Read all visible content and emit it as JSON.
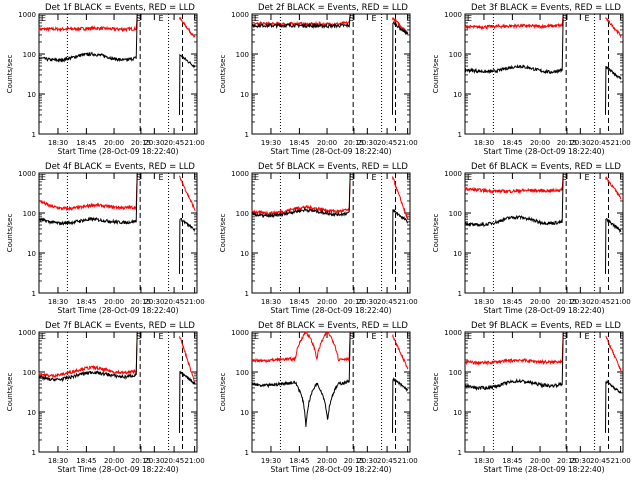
{
  "colors": {
    "black_series": "#000000",
    "red_series": "#ff0000"
  },
  "chart_data": [
    {
      "type": "line",
      "title": "Det 1f BLACK = Events, RED = LLD",
      "xlabel": "Start Time (28-Oct-09 18:22:40)",
      "ylabel": "Counts/sec",
      "yscale": "log",
      "ylim": [
        1,
        1000
      ],
      "x_range": [
        "18:22:40",
        "21:00"
      ],
      "x_ticks": [
        "18:30",
        "18:45",
        "20:00",
        "20:15",
        "20:30",
        "20:45",
        "21:00"
      ],
      "y_ticks": [
        "1",
        "10",
        "100",
        "1000"
      ],
      "markers": {
        "E_left": "E",
        "S": "S",
        "E_right": "E"
      },
      "series": [
        {
          "x": [
            "18:23",
            "18:30",
            "18:45",
            "19:00",
            "19:15",
            "19:30",
            "19:45",
            "20:00",
            "20:10",
            "20:14"
          ],
          "values": [
            420,
            420,
            420,
            425,
            430,
            440,
            435,
            420,
            415,
            430
          ]
        },
        {
          "x": [
            "18:23",
            "18:30",
            "18:45",
            "19:00",
            "19:15",
            "19:30",
            "19:45",
            "20:00",
            "20:10",
            "20:14"
          ],
          "values": [
            80,
            72,
            70,
            80,
            95,
            100,
            90,
            75,
            70,
            80
          ]
        }
      ]
    },
    {
      "type": "line",
      "title": "Det 2f BLACK = Events, RED = LLD",
      "xlabel": "Start Time (28-Oct-09 18:22:40)",
      "ylabel": "Counts/sec",
      "yscale": "log",
      "ylim": [
        1,
        1000
      ],
      "x_range": [
        "18:22:40",
        "21:00"
      ],
      "x_ticks": [
        "19:30",
        "18:45",
        "20:00",
        "20:15",
        "20:30",
        "20:45",
        "21:00"
      ],
      "y_ticks": [
        "1",
        "10",
        "100",
        "1000"
      ],
      "markers": {
        "E_left": "E",
        "S": "S",
        "E_right": "E"
      },
      "series": [
        {
          "x": [
            "18:23",
            "18:30",
            "18:45",
            "19:00",
            "19:15",
            "19:30",
            "19:45",
            "20:00",
            "20:10",
            "20:14"
          ],
          "values": [
            560,
            570,
            560,
            565,
            570,
            560,
            560,
            555,
            560,
            600
          ]
        },
        {
          "x": [
            "18:23",
            "18:30",
            "18:45",
            "19:00",
            "19:15",
            "19:30",
            "19:45",
            "20:00",
            "20:10",
            "20:14"
          ],
          "values": [
            500,
            520,
            510,
            515,
            520,
            510,
            505,
            500,
            505,
            520
          ]
        }
      ]
    },
    {
      "type": "line",
      "title": "Det 3f BLACK = Events, RED = LLD",
      "xlabel": "Start Time (28-Oct-09 18:22:40)",
      "ylabel": "Counts/sec",
      "yscale": "log",
      "ylim": [
        1,
        1000
      ],
      "x_range": [
        "18:22:40",
        "21:00"
      ],
      "x_ticks": [
        "18:30",
        "18:45",
        "20:00",
        "20:15",
        "20:30",
        "20:45",
        "21:00"
      ],
      "y_ticks": [
        "1",
        "10",
        "100",
        "1000"
      ],
      "markers": {
        "E_left": "E",
        "S": "S",
        "E_right": "E"
      },
      "series": [
        {
          "x": [
            "18:23",
            "18:30",
            "18:45",
            "19:00",
            "19:15",
            "19:30",
            "19:45",
            "20:00",
            "20:10",
            "20:14"
          ],
          "values": [
            480,
            470,
            480,
            490,
            500,
            510,
            500,
            490,
            500,
            520
          ]
        },
        {
          "x": [
            "18:23",
            "18:30",
            "18:45",
            "19:00",
            "19:15",
            "19:30",
            "19:45",
            "20:00",
            "20:10",
            "20:14"
          ],
          "values": [
            40,
            38,
            36,
            38,
            45,
            50,
            45,
            38,
            35,
            40
          ]
        }
      ]
    },
    {
      "type": "line",
      "title": "Det 4f BLACK = Events, RED = LLD",
      "xlabel": "Start Time (28-Oct-09 18:22:40)",
      "ylabel": "Counts/sec",
      "yscale": "log",
      "ylim": [
        1,
        1000
      ],
      "x_range": [
        "18:22:40",
        "21:00"
      ],
      "x_ticks": [
        "18:30",
        "18:45",
        "20:00",
        "20:15",
        "20:30",
        "20:45",
        "21:00"
      ],
      "y_ticks": [
        "1",
        "10",
        "100",
        "1000"
      ],
      "markers": {
        "E_left": "E",
        "S": "S",
        "E_right": "E"
      },
      "series": [
        {
          "x": [
            "18:23",
            "18:30",
            "18:45",
            "19:00",
            "19:15",
            "19:30",
            "19:45",
            "20:00",
            "20:10",
            "20:14"
          ],
          "values": [
            200,
            150,
            130,
            130,
            140,
            160,
            150,
            140,
            135,
            140
          ]
        },
        {
          "x": [
            "18:23",
            "18:30",
            "18:45",
            "19:00",
            "19:15",
            "19:30",
            "19:45",
            "20:00",
            "20:10",
            "20:14"
          ],
          "values": [
            70,
            60,
            55,
            58,
            65,
            70,
            65,
            60,
            58,
            62
          ]
        }
      ]
    },
    {
      "type": "line",
      "title": "Det 5f BLACK = Events, RED = LLD",
      "xlabel": "Start Time (28-Oct-09 18:22:40)",
      "ylabel": "Counts/sec",
      "yscale": "log",
      "ylim": [
        1,
        1000
      ],
      "x_range": [
        "18:22:40",
        "21:00"
      ],
      "x_ticks": [
        "18:30",
        "18:45",
        "20:00",
        "20:15",
        "20:30",
        "20:45",
        "21:00"
      ],
      "y_ticks": [
        "1",
        "10",
        "100",
        "1000"
      ],
      "markers": {
        "E_left": "E",
        "S": "S",
        "E_right": "E"
      },
      "series": [
        {
          "x": [
            "18:23",
            "18:30",
            "18:45",
            "19:00",
            "19:15",
            "19:30",
            "19:45",
            "20:00",
            "20:10",
            "20:14"
          ],
          "values": [
            110,
            100,
            100,
            110,
            130,
            140,
            130,
            115,
            110,
            120
          ]
        },
        {
          "x": [
            "18:23",
            "18:30",
            "18:45",
            "19:00",
            "19:15",
            "19:30",
            "19:45",
            "20:00",
            "20:10",
            "20:14"
          ],
          "values": [
            95,
            85,
            85,
            95,
            110,
            120,
            110,
            98,
            92,
            100
          ]
        }
      ]
    },
    {
      "type": "line",
      "title": "Det 6f BLACK = Events, RED = LLD",
      "xlabel": "Start Time (28-Oct-09 18:22:40)",
      "ylabel": "Counts/sec",
      "yscale": "log",
      "ylim": [
        1,
        1000
      ],
      "x_range": [
        "18:22:40",
        "21:00"
      ],
      "x_ticks": [
        "18:30",
        "18:45",
        "20:00",
        "20:15",
        "20:30",
        "20:45",
        "21:00"
      ],
      "y_ticks": [
        "1",
        "10",
        "100",
        "1000"
      ],
      "markers": {
        "E_left": "E",
        "S": "S",
        "E_right": "E"
      },
      "series": [
        {
          "x": [
            "18:23",
            "18:30",
            "18:45",
            "19:00",
            "19:15",
            "19:30",
            "19:45",
            "20:00",
            "20:10",
            "20:14"
          ],
          "values": [
            400,
            380,
            360,
            350,
            350,
            360,
            370,
            360,
            360,
            380
          ]
        },
        {
          "x": [
            "18:23",
            "18:30",
            "18:45",
            "19:00",
            "19:15",
            "19:30",
            "19:45",
            "20:00",
            "20:10",
            "20:14"
          ],
          "values": [
            55,
            50,
            52,
            60,
            75,
            80,
            70,
            58,
            55,
            60
          ]
        }
      ]
    },
    {
      "type": "line",
      "title": "Det 7f BLACK = Events, RED = LLD",
      "xlabel": "Start Time (28-Oct-09 18:22:40)",
      "ylabel": "Counts/sec",
      "yscale": "log",
      "ylim": [
        1,
        1000
      ],
      "x_range": [
        "18:22:40",
        "21:00"
      ],
      "x_ticks": [
        "18:30",
        "18:45",
        "20:00",
        "20:15",
        "20:30",
        "20:45",
        "21:00"
      ],
      "y_ticks": [
        "1",
        "10",
        "100",
        "1000"
      ],
      "markers": {
        "E_left": "E",
        "S": "S",
        "E_right": "E"
      },
      "series": [
        {
          "x": [
            "18:23",
            "18:30",
            "18:45",
            "19:00",
            "19:15",
            "19:30",
            "19:45",
            "20:00",
            "20:10",
            "20:14"
          ],
          "values": [
            90,
            80,
            85,
            100,
            120,
            130,
            115,
            100,
            95,
            105
          ]
        },
        {
          "x": [
            "18:23",
            "18:30",
            "18:45",
            "19:00",
            "19:15",
            "19:30",
            "19:45",
            "20:00",
            "20:10",
            "20:14"
          ],
          "values": [
            75,
            65,
            65,
            75,
            90,
            100,
            90,
            80,
            75,
            85
          ]
        }
      ]
    },
    {
      "type": "line",
      "title": "Det 8f BLACK = Events, RED = LLD",
      "xlabel": "Start Time (28-Oct-09 18:22:40)",
      "ylabel": "Counts/sec",
      "yscale": "log",
      "ylim": [
        1,
        1000
      ],
      "x_range": [
        "18:22:40",
        "21:00"
      ],
      "x_ticks": [
        "19:30",
        "18:45",
        "20:00",
        "20:15",
        "20:30",
        "20:45",
        "21:00"
      ],
      "y_ticks": [
        "1",
        "10",
        "100",
        "1000"
      ],
      "markers": {
        "E_left": "E",
        "S": "S",
        "E_right": "E"
      },
      "series": [
        {
          "x": [
            "18:23",
            "18:30",
            "18:45",
            "19:00",
            "19:15",
            "19:30",
            "19:45",
            "20:00",
            "20:10",
            "20:14"
          ],
          "values": [
            200,
            190,
            200,
            210,
            210,
            1000,
            210,
            1000,
            205,
            220
          ]
        },
        {
          "x": [
            "18:23",
            "18:30",
            "18:45",
            "19:00",
            "19:15",
            "19:30",
            "19:45",
            "20:00",
            "20:10",
            "20:14"
          ],
          "values": [
            50,
            45,
            48,
            52,
            55,
            4,
            52,
            6,
            50,
            58
          ]
        }
      ]
    },
    {
      "type": "line",
      "title": "Det 9f BLACK = Events, RED = LLD",
      "xlabel": "Start Time (28-Oct-09 18:22:40)",
      "ylabel": "Counts/sec",
      "yscale": "log",
      "ylim": [
        1,
        1000
      ],
      "x_range": [
        "18:22:40",
        "21:00"
      ],
      "x_ticks": [
        "18:30",
        "18:45",
        "20:00",
        "20:15",
        "20:30",
        "20:45",
        "21:00"
      ],
      "y_ticks": [
        "1",
        "10",
        "100",
        "1000"
      ],
      "markers": {
        "E_left": "E",
        "S": "S",
        "E_right": "E"
      },
      "series": [
        {
          "x": [
            "18:23",
            "18:30",
            "18:45",
            "19:00",
            "19:15",
            "19:30",
            "19:45",
            "20:00",
            "20:10",
            "20:14"
          ],
          "values": [
            180,
            170,
            170,
            180,
            190,
            200,
            190,
            180,
            175,
            190
          ]
        },
        {
          "x": [
            "18:23",
            "18:30",
            "18:45",
            "19:00",
            "19:15",
            "19:30",
            "19:45",
            "20:00",
            "20:10",
            "20:14"
          ],
          "values": [
            45,
            40,
            40,
            45,
            55,
            60,
            55,
            48,
            45,
            50
          ]
        }
      ]
    }
  ]
}
